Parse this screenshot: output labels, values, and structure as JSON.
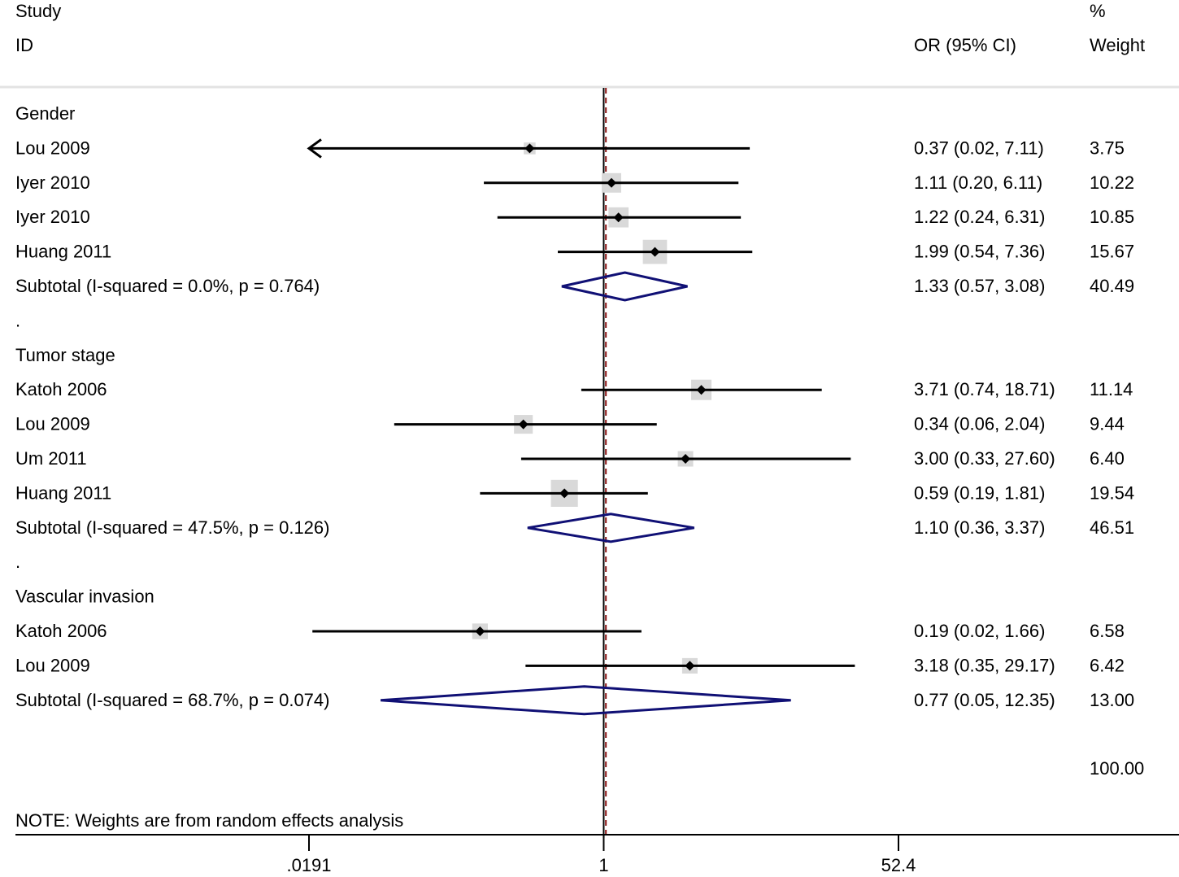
{
  "header": {
    "study_label": "Study",
    "id_label": "ID",
    "effect_label": "OR (95% CI)",
    "percent_label": "%",
    "weight_label": "Weight"
  },
  "footer": {
    "overall_weight": "100.00",
    "note": "NOTE: Weights are from random effects analysis"
  },
  "chart_data": {
    "type": "forest",
    "measure": "OR (95% CI)",
    "scale": "log",
    "xlim": [
      0.0191,
      52.4
    ],
    "xticks": [
      ".0191",
      "1",
      "52.4"
    ],
    "null_line": 1,
    "overall_estimate_line": 1.03,
    "colors": {
      "ci_line": "#000000",
      "weight_box": "#d9d9d9",
      "diamond": "#101075",
      "overall_line": "#8b1a1a"
    },
    "rows": [
      {
        "kind": "header",
        "label": "Gender"
      },
      {
        "kind": "study",
        "label": "Lou 2009",
        "or": 0.37,
        "lo": 0.02,
        "hi": 7.11,
        "text": "0.37 (0.02, 7.11)",
        "weight": 3.75,
        "weight_text": "3.75",
        "arrow_left": true
      },
      {
        "kind": "study",
        "label": "Iyer 2010",
        "or": 1.11,
        "lo": 0.2,
        "hi": 6.11,
        "text": "1.11 (0.20, 6.11)",
        "weight": 10.22,
        "weight_text": "10.22"
      },
      {
        "kind": "study",
        "label": "Iyer 2010",
        "or": 1.22,
        "lo": 0.24,
        "hi": 6.31,
        "text": "1.22 (0.24, 6.31)",
        "weight": 10.85,
        "weight_text": "10.85"
      },
      {
        "kind": "study",
        "label": "Huang 2011",
        "or": 1.99,
        "lo": 0.54,
        "hi": 7.36,
        "text": "1.99 (0.54, 7.36)",
        "weight": 15.67,
        "weight_text": "15.67"
      },
      {
        "kind": "subtotal",
        "label": "Subtotal  (I-squared = 0.0%, p = 0.764)",
        "or": 1.33,
        "lo": 0.57,
        "hi": 3.08,
        "text": "1.33 (0.57, 3.08)",
        "weight": 40.49,
        "weight_text": "40.49"
      },
      {
        "kind": "spacer",
        "label": "."
      },
      {
        "kind": "header",
        "label": "Tumor stage"
      },
      {
        "kind": "study",
        "label": "Katoh 2006",
        "or": 3.71,
        "lo": 0.74,
        "hi": 18.71,
        "text": "3.71 (0.74, 18.71)",
        "weight": 11.14,
        "weight_text": "11.14"
      },
      {
        "kind": "study",
        "label": "Lou 2009",
        "or": 0.34,
        "lo": 0.06,
        "hi": 2.04,
        "text": "0.34 (0.06, 2.04)",
        "weight": 9.44,
        "weight_text": "9.44"
      },
      {
        "kind": "study",
        "label": "Um 2011",
        "or": 3.0,
        "lo": 0.33,
        "hi": 27.6,
        "text": "3.00 (0.33, 27.60)",
        "weight": 6.4,
        "weight_text": "6.40"
      },
      {
        "kind": "study",
        "label": "Huang 2011",
        "or": 0.59,
        "lo": 0.19,
        "hi": 1.81,
        "text": "0.59 (0.19, 1.81)",
        "weight": 19.54,
        "weight_text": "19.54"
      },
      {
        "kind": "subtotal",
        "label": "Subtotal  (I-squared = 47.5%, p = 0.126)",
        "or": 1.1,
        "lo": 0.36,
        "hi": 3.37,
        "text": "1.10 (0.36, 3.37)",
        "weight": 46.51,
        "weight_text": "46.51"
      },
      {
        "kind": "spacer",
        "label": "."
      },
      {
        "kind": "header",
        "label": "Vascular invasion"
      },
      {
        "kind": "study",
        "label": "Katoh 2006",
        "or": 0.19,
        "lo": 0.02,
        "hi": 1.66,
        "text": "0.19 (0.02, 1.66)",
        "weight": 6.58,
        "weight_text": "6.58"
      },
      {
        "kind": "study",
        "label": "Lou 2009",
        "or": 3.18,
        "lo": 0.35,
        "hi": 29.17,
        "text": "3.18 (0.35, 29.17)",
        "weight": 6.42,
        "weight_text": "6.42"
      },
      {
        "kind": "subtotal",
        "label": "Subtotal  (I-squared = 68.7%, p = 0.074)",
        "or": 0.77,
        "lo": 0.05,
        "hi": 12.35,
        "text": "0.77 (0.05, 12.35)",
        "weight": 13.0,
        "weight_text": "13.00"
      }
    ]
  }
}
